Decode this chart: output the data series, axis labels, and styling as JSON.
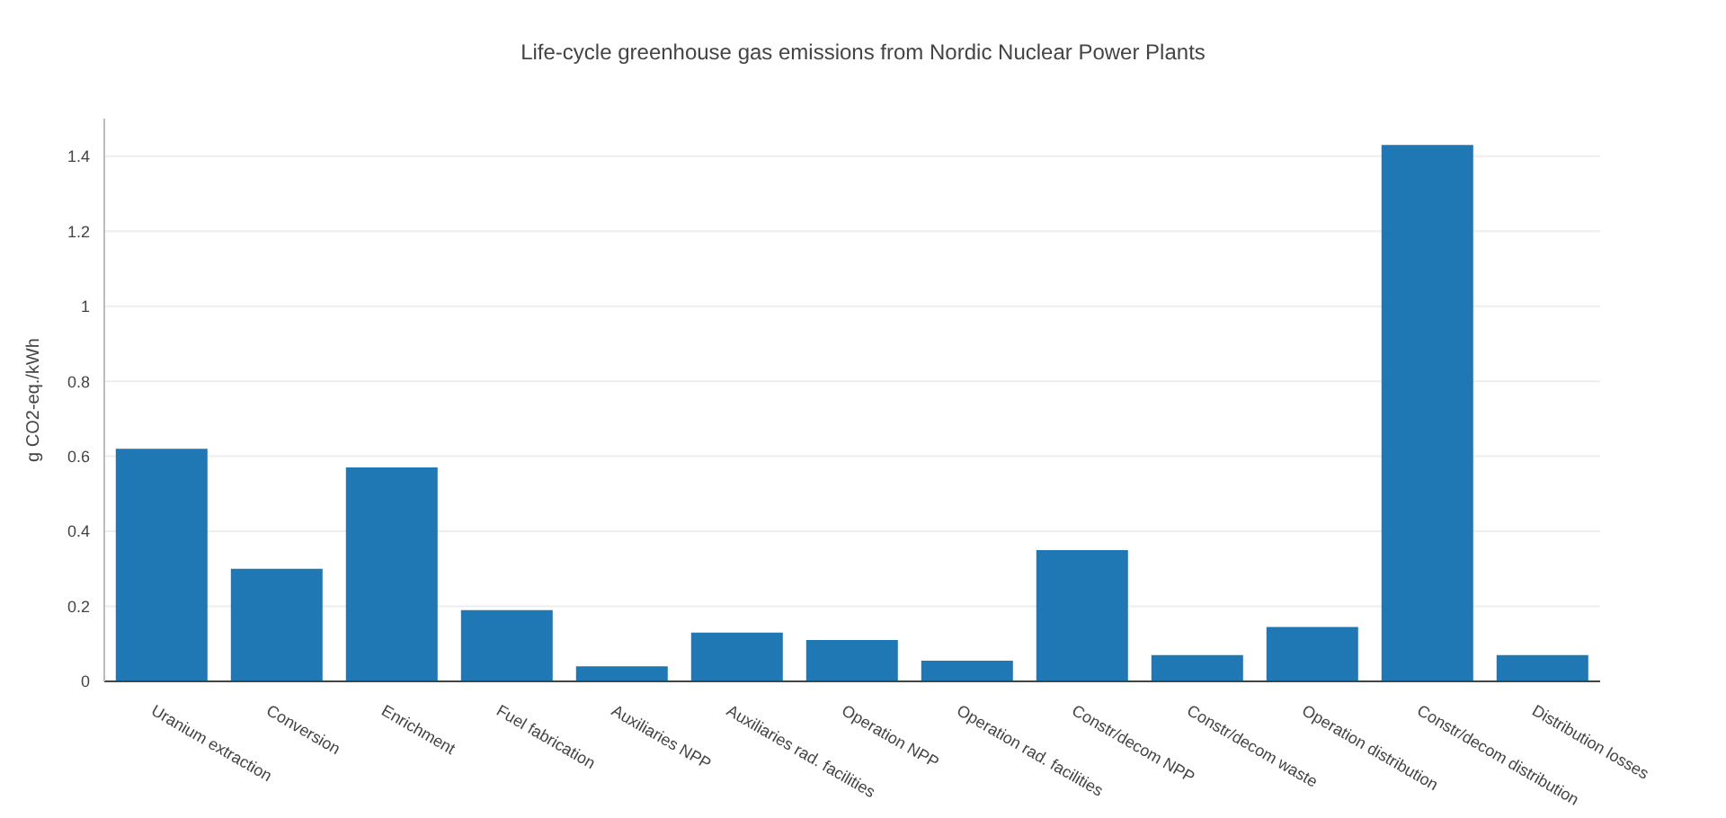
{
  "chart_data": {
    "type": "bar",
    "title": "Life-cycle greenhouse gas emissions from Nordic Nuclear Power Plants",
    "ylabel": "g CO2-eq./kWh",
    "categories": [
      "Uranium extraction",
      "Conversion",
      "Enrichment",
      "Fuel fabrication",
      "Auxiliaries NPP",
      "Auxiliaries rad. facilities",
      "Operation NPP",
      "Operation rad. facilities",
      "Constr/decom NPP",
      "Constr/decom waste",
      "Operation distribution",
      "Constr/decom distribution",
      "Distribution losses"
    ],
    "values": [
      0.62,
      0.3,
      0.57,
      0.19,
      0.04,
      0.13,
      0.11,
      0.055,
      0.35,
      0.07,
      0.145,
      1.43,
      0.07
    ],
    "color": "#1f77b4",
    "ylim": [
      0,
      1.5
    ],
    "yticks": [
      0,
      0.2,
      0.4,
      0.6,
      0.8,
      1,
      1.2,
      1.4
    ],
    "grid": "y"
  }
}
